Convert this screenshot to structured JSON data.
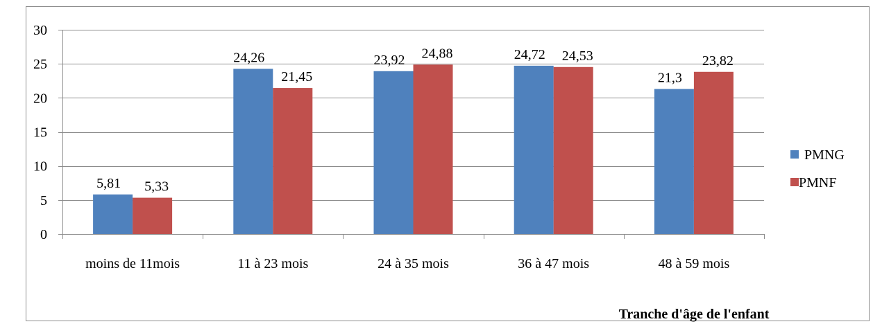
{
  "chart_data": {
    "type": "bar",
    "title": "",
    "xlabel": "Tranche d'âge de l'enfant",
    "ylabel": "",
    "categories": [
      "moins de 11mois",
      "11 à 23 mois",
      "24 à 35 mois",
      "36 à 47 mois",
      "48 à 59 mois"
    ],
    "series": [
      {
        "name": "PMNG",
        "color": "#4F81BD",
        "values": [
          5.81,
          24.26,
          23.92,
          24.72,
          21.3
        ],
        "labels": [
          "5,81",
          "24,26",
          "23,92",
          "24,72",
          "21,3"
        ]
      },
      {
        "name": "PMNF",
        "color": "#C0504D",
        "values": [
          5.33,
          21.45,
          24.88,
          24.53,
          23.82
        ],
        "labels": [
          "5,33",
          "21,45",
          "24,88",
          "24,53",
          "23,82"
        ]
      }
    ],
    "ylim": [
      0,
      30
    ],
    "yticks": [
      "0",
      "5",
      "10",
      "15",
      "20",
      "25",
      "30"
    ],
    "grid": true,
    "legend_position": "right"
  }
}
